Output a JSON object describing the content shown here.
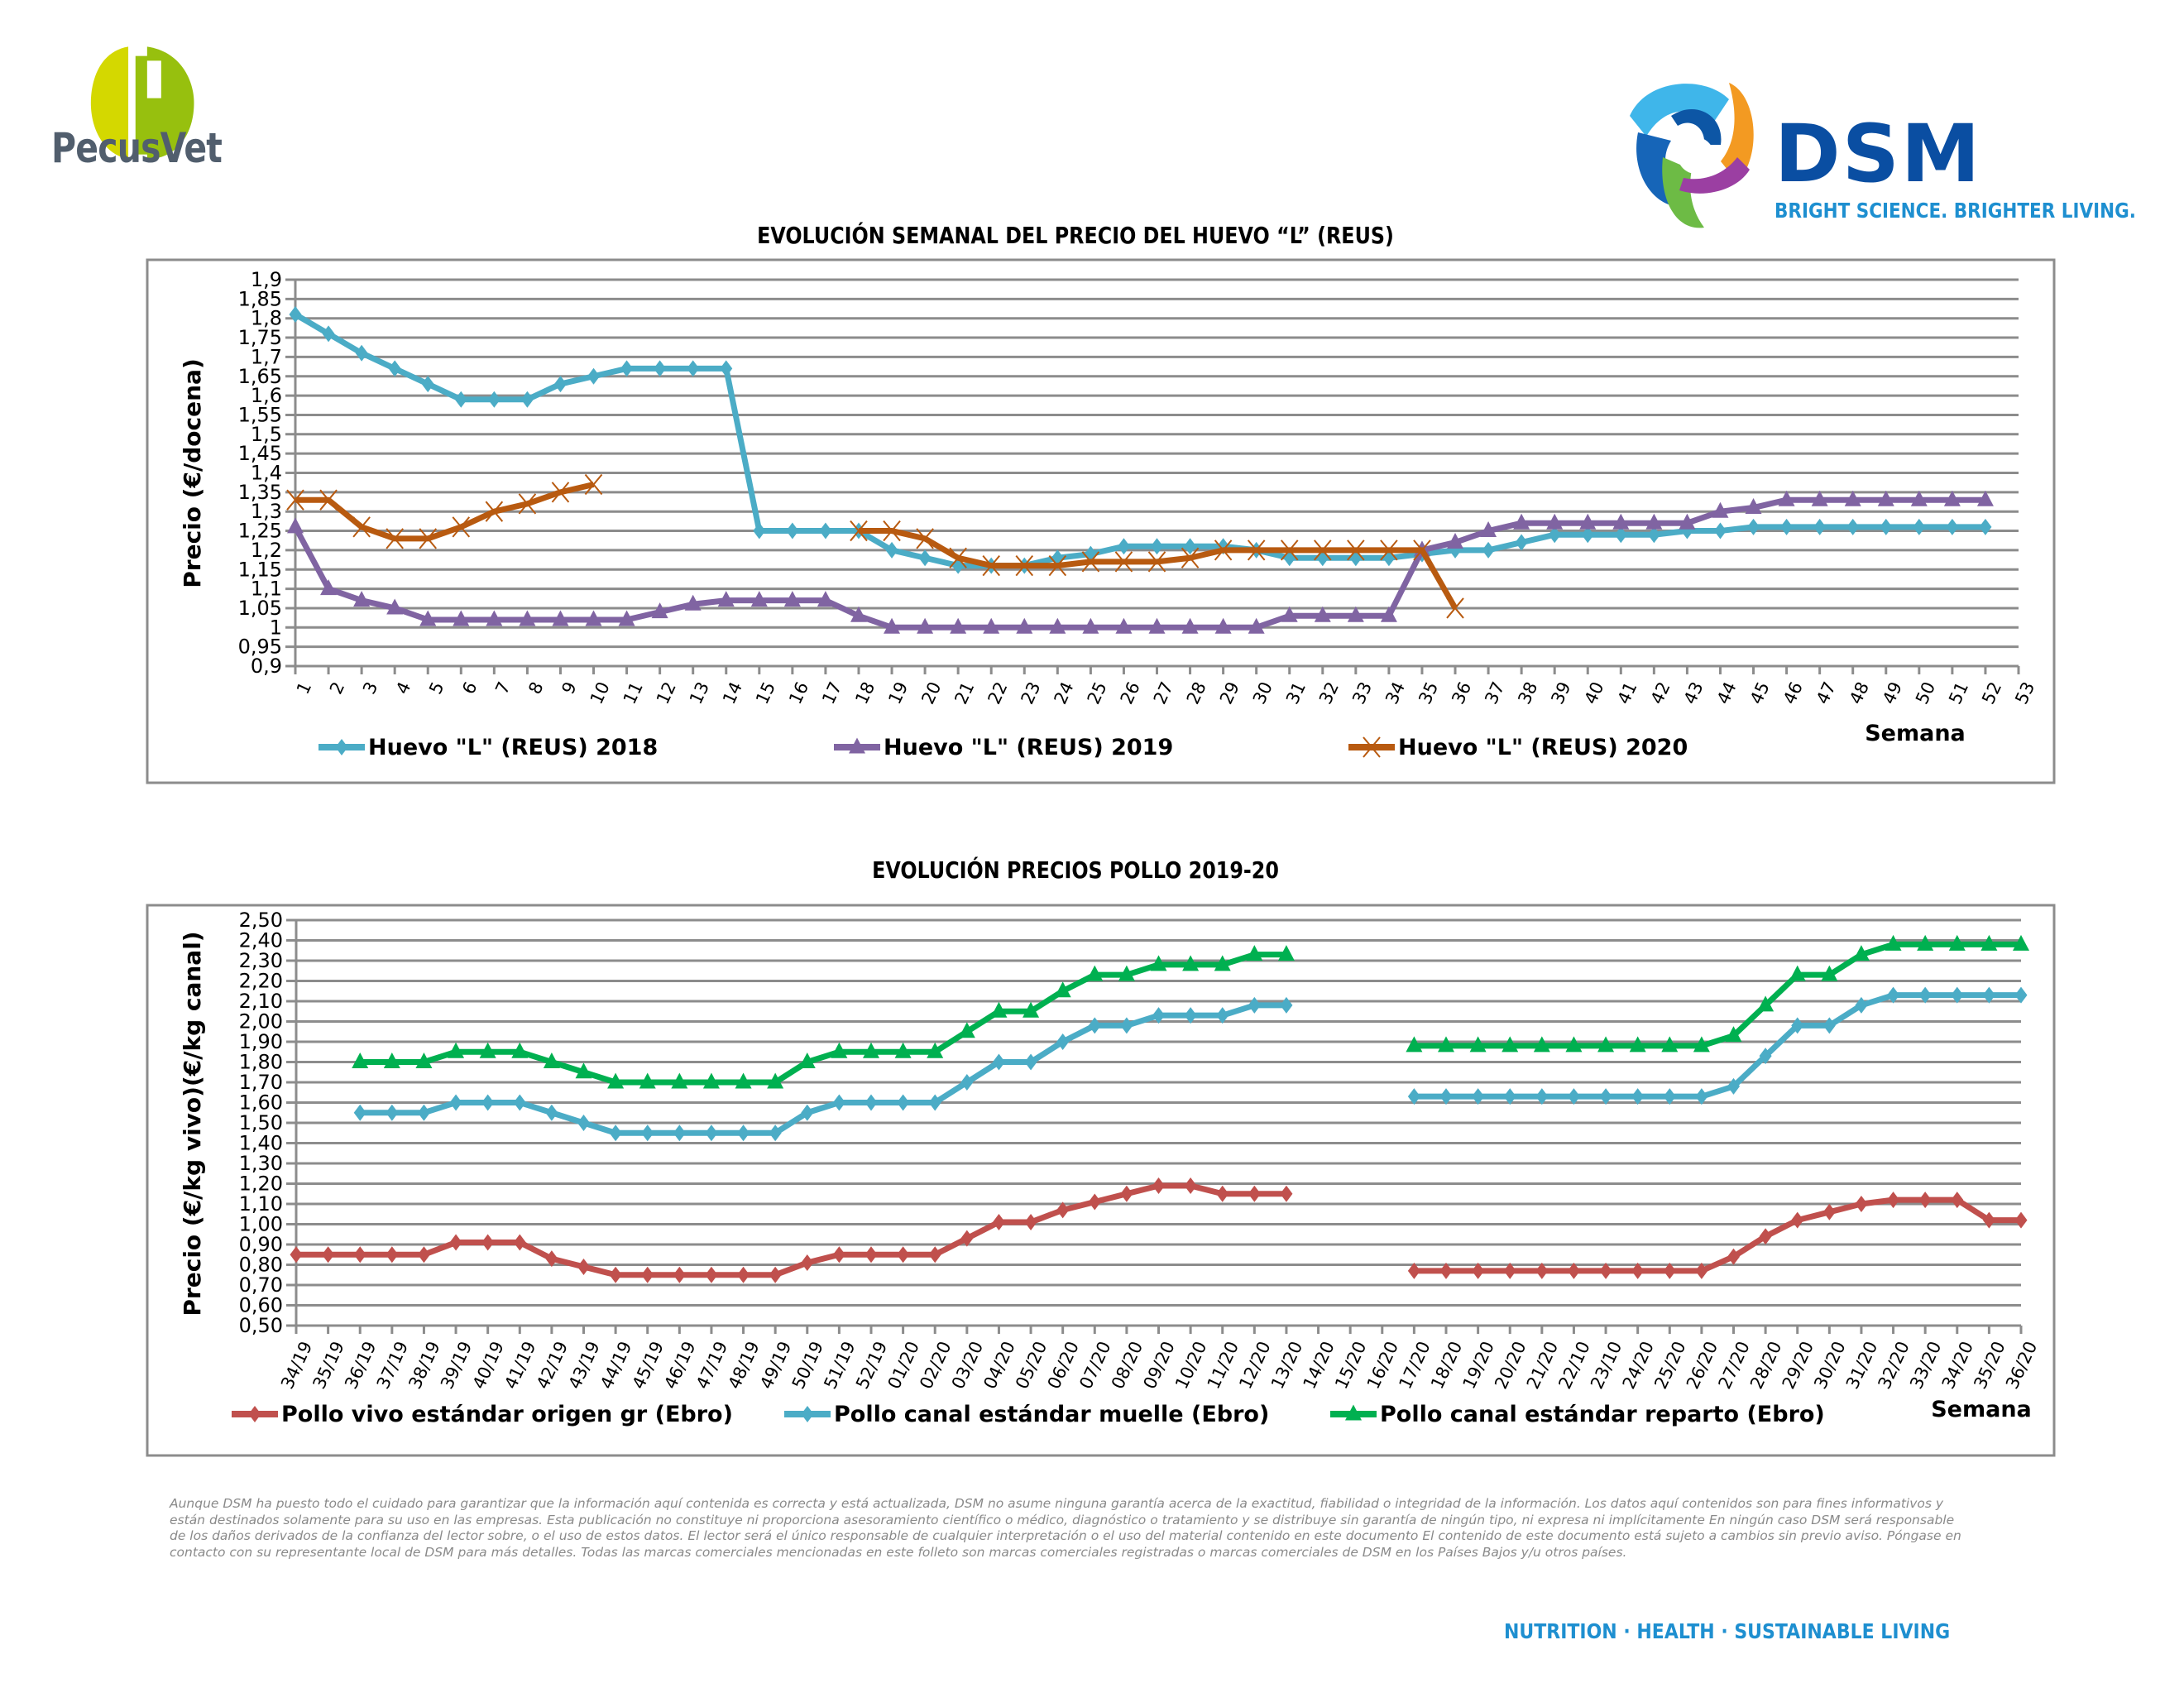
{
  "header": {
    "left_logo_text": "PecusVet",
    "right_logo_text": "DSM",
    "right_logo_tagline": "BRIGHT SCIENCE. BRIGHTER LIVING."
  },
  "chart_data": [
    {
      "id": "huevo",
      "type": "line",
      "title": "EVOLUCIÓN SEMANAL DEL PRECIO DEL HUEVO “L” (REUS)",
      "xlabel": "Semana",
      "ylabel": "Precio (€/docena)",
      "ylim": [
        0.9,
        1.9
      ],
      "yticks": [
        "0,9",
        "0,95",
        "1",
        "1,05",
        "1,1",
        "1,15",
        "1,2",
        "1,25",
        "1,3",
        "1,35",
        "1,4",
        "1,45",
        "1,5",
        "1,55",
        "1,6",
        "1,65",
        "1,7",
        "1,75",
        "1,8",
        "1,85",
        "1,9"
      ],
      "ytick_values": [
        0.9,
        0.95,
        1,
        1.05,
        1.1,
        1.15,
        1.2,
        1.25,
        1.3,
        1.35,
        1.4,
        1.45,
        1.5,
        1.55,
        1.6,
        1.65,
        1.7,
        1.75,
        1.8,
        1.85,
        1.9
      ],
      "categories": [
        "1",
        "2",
        "3",
        "4",
        "5",
        "6",
        "7",
        "8",
        "9",
        "10",
        "11",
        "12",
        "13",
        "14",
        "15",
        "16",
        "17",
        "18",
        "19",
        "20",
        "21",
        "22",
        "23",
        "24",
        "25",
        "26",
        "27",
        "28",
        "29",
        "30",
        "31",
        "32",
        "33",
        "34",
        "35",
        "36",
        "37",
        "38",
        "39",
        "40",
        "41",
        "42",
        "43",
        "44",
        "45",
        "46",
        "47",
        "48",
        "49",
        "50",
        "51",
        "52",
        "53"
      ],
      "grid": true,
      "legend": "bottom",
      "series": [
        {
          "name": "Huevo \"L\" (REUS) 2018",
          "color": "#4bacc6",
          "marker": "diamond",
          "values": [
            1.81,
            1.76,
            1.71,
            1.67,
            1.63,
            1.59,
            1.59,
            1.59,
            1.63,
            1.65,
            1.67,
            1.67,
            1.67,
            1.67,
            1.25,
            1.25,
            1.25,
            1.25,
            1.2,
            1.18,
            1.16,
            1.16,
            1.16,
            1.18,
            1.19,
            1.21,
            1.21,
            1.21,
            1.21,
            1.2,
            1.18,
            1.18,
            1.18,
            1.18,
            1.19,
            1.2,
            1.2,
            1.22,
            1.24,
            1.24,
            1.24,
            1.24,
            1.25,
            1.25,
            1.26,
            1.26,
            1.26,
            1.26,
            1.26,
            1.26,
            1.26,
            1.26,
            null
          ]
        },
        {
          "name": "Huevo \"L\" (REUS) 2019",
          "color": "#8064a2",
          "marker": "triangle",
          "values": [
            1.26,
            1.1,
            1.07,
            1.05,
            1.02,
            1.02,
            1.02,
            1.02,
            1.02,
            1.02,
            1.02,
            1.04,
            1.06,
            1.07,
            1.07,
            1.07,
            1.07,
            1.03,
            1.0,
            1.0,
            1.0,
            1.0,
            1.0,
            1.0,
            1.0,
            1.0,
            1.0,
            1.0,
            1.0,
            1.0,
            1.03,
            1.03,
            1.03,
            1.03,
            1.2,
            1.22,
            1.25,
            1.27,
            1.27,
            1.27,
            1.27,
            1.27,
            1.27,
            1.3,
            1.31,
            1.33,
            1.33,
            1.33,
            1.33,
            1.33,
            1.33,
            1.33,
            null
          ]
        },
        {
          "name": "Huevo \"L\" (REUS) 2020",
          "color": "#b85a10",
          "marker": "x",
          "values": [
            1.33,
            1.33,
            1.26,
            1.23,
            1.23,
            1.26,
            1.3,
            1.32,
            1.35,
            1.37,
            null,
            null,
            null,
            null,
            null,
            null,
            null,
            1.25,
            1.25,
            1.23,
            1.18,
            1.16,
            1.16,
            1.16,
            1.17,
            1.17,
            1.17,
            1.18,
            1.2,
            1.2,
            1.2,
            1.2,
            1.2,
            1.2,
            1.2,
            1.05,
            null,
            null,
            null,
            null,
            null,
            null,
            null,
            null,
            null,
            null,
            null,
            null,
            null,
            null,
            null,
            null,
            null
          ]
        }
      ]
    },
    {
      "id": "pollo",
      "type": "line",
      "title": "EVOLUCIÓN PRECIOS POLLO 2019-20",
      "xlabel": "Semana",
      "ylabel": "Precio (€/kg vivo)(€/kg canal)",
      "ylim": [
        0.5,
        2.5
      ],
      "yticks": [
        "0,50",
        "0,60",
        "0,70",
        "0,80",
        "0,90",
        "1,00",
        "1,10",
        "1,20",
        "1,30",
        "1,40",
        "1,50",
        "1,60",
        "1,70",
        "1,80",
        "1,90",
        "2,00",
        "2,10",
        "2,20",
        "2,30",
        "2,40",
        "2,50"
      ],
      "ytick_values": [
        0.5,
        0.6,
        0.7,
        0.8,
        0.9,
        1.0,
        1.1,
        1.2,
        1.3,
        1.4,
        1.5,
        1.6,
        1.7,
        1.8,
        1.9,
        2.0,
        2.1,
        2.2,
        2.3,
        2.4,
        2.5
      ],
      "categories": [
        "34/19",
        "35/19",
        "36/19",
        "37/19",
        "38/19",
        "39/19",
        "40/19",
        "41/19",
        "42/19",
        "43/19",
        "44/19",
        "45/19",
        "46/19",
        "47/19",
        "48/19",
        "49/19",
        "50/19",
        "51/19",
        "52/19",
        "01/20",
        "02/20",
        "03/20",
        "04/20",
        "05/20",
        "06/20",
        "07/20",
        "08/20",
        "09/20",
        "10/20",
        "11/20",
        "12/20",
        "13/20",
        "14/20",
        "15/20",
        "16/20",
        "17/20",
        "18/20",
        "19/20",
        "20/20",
        "21/20",
        "22/10",
        "23/10",
        "24/20",
        "25/20",
        "26/20",
        "27/20",
        "28/20",
        "29/20",
        "30/20",
        "31/20",
        "32/20",
        "33/20",
        "34/20",
        "35/20",
        "36/20"
      ],
      "grid": true,
      "legend": "bottom",
      "series": [
        {
          "name": "Pollo vivo estándar origen gr (Ebro)",
          "color": "#c0504d",
          "marker": "diamond",
          "values": [
            0.85,
            0.85,
            0.85,
            0.85,
            0.85,
            0.91,
            0.91,
            0.91,
            0.83,
            0.79,
            0.75,
            0.75,
            0.75,
            0.75,
            0.75,
            0.75,
            0.81,
            0.85,
            0.85,
            0.85,
            0.85,
            0.93,
            1.01,
            1.01,
            1.07,
            1.11,
            1.15,
            1.19,
            1.19,
            1.15,
            1.15,
            1.15,
            null,
            null,
            null,
            0.77,
            0.77,
            0.77,
            0.77,
            0.77,
            0.77,
            0.77,
            0.77,
            0.77,
            0.77,
            0.84,
            0.94,
            1.02,
            1.06,
            1.1,
            1.12,
            1.12,
            1.12,
            1.02,
            1.02
          ]
        },
        {
          "name": "Pollo canal estándar muelle (Ebro)",
          "color": "#4bacc6",
          "marker": "diamond",
          "values": [
            null,
            null,
            1.55,
            1.55,
            1.55,
            1.6,
            1.6,
            1.6,
            1.55,
            1.5,
            1.45,
            1.45,
            1.45,
            1.45,
            1.45,
            1.45,
            1.55,
            1.6,
            1.6,
            1.6,
            1.6,
            1.7,
            1.8,
            1.8,
            1.9,
            1.98,
            1.98,
            2.03,
            2.03,
            2.03,
            2.08,
            2.08,
            null,
            null,
            null,
            1.63,
            1.63,
            1.63,
            1.63,
            1.63,
            1.63,
            1.63,
            1.63,
            1.63,
            1.63,
            1.68,
            1.83,
            1.98,
            1.98,
            2.08,
            2.13,
            2.13,
            2.13,
            2.13,
            2.13
          ]
        },
        {
          "name": "Pollo canal estándar reparto (Ebro)",
          "color": "#00b050",
          "marker": "triangle",
          "values": [
            null,
            null,
            1.8,
            1.8,
            1.8,
            1.85,
            1.85,
            1.85,
            1.8,
            1.75,
            1.7,
            1.7,
            1.7,
            1.7,
            1.7,
            1.7,
            1.8,
            1.85,
            1.85,
            1.85,
            1.85,
            1.95,
            2.05,
            2.05,
            2.15,
            2.23,
            2.23,
            2.28,
            2.28,
            2.28,
            2.33,
            2.33,
            null,
            null,
            null,
            1.88,
            1.88,
            1.88,
            1.88,
            1.88,
            1.88,
            1.88,
            1.88,
            1.88,
            1.88,
            1.93,
            2.08,
            2.23,
            2.23,
            2.33,
            2.38,
            2.38,
            2.38,
            2.38,
            2.38
          ]
        }
      ]
    }
  ],
  "disclaimer": "Aunque DSM ha puesto todo el cuidado para garantizar que la información aquí contenida es correcta y está actualizada, DSM no asume ninguna garantía acerca de la exactitud, fiabilidad o integridad de la información. Los datos aquí contenidos son para fines informativos y están destinados solamente para su uso en las empresas. Esta publicación no constituye ni proporciona asesoramiento científico o médico, diagnóstico o tratamiento y se distribuye sin garantía de ningún tipo, ni expresa ni implícitamente En ningún caso DSM será responsable de los daños derivados de la confianza del lector sobre, o el uso de estos datos. El lector será el único responsable de cualquier interpretación o el uso del material contenido en este documento El contenido de este documento está sujeto a cambios sin previo aviso. Póngase en contacto con su representante local de DSM para más detalles. Todas las marcas comerciales mencionadas en este folleto son marcas comerciales registradas o marcas comerciales de DSM en los Países Bajos y/u otros países.",
  "footer": {
    "tagline": "NUTRITION · HEALTH · SUSTAINABLE LIVING"
  }
}
